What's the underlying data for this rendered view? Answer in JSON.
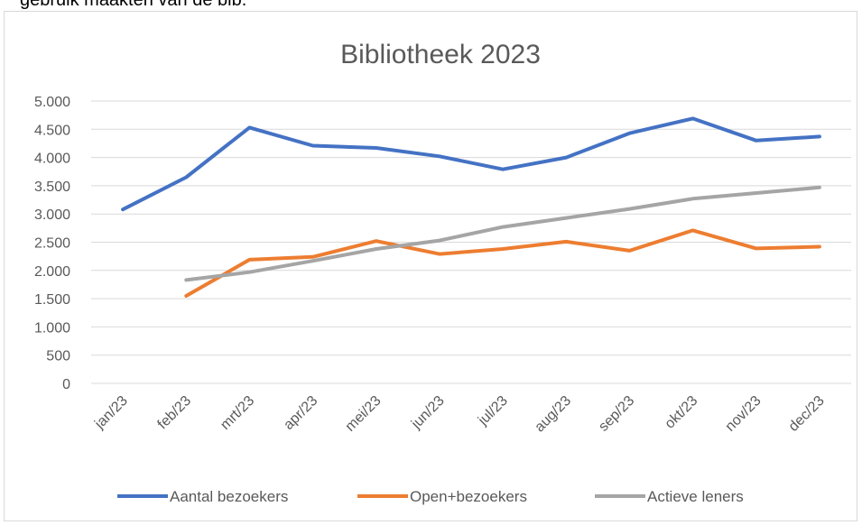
{
  "page": {
    "caption": "gebruik maakten van de bib."
  },
  "chart_data": {
    "type": "line",
    "title": "Bibliotheek 2023",
    "categories": [
      "jan/23",
      "feb/23",
      "mrt/23",
      "apr/23",
      "mei/23",
      "jun/23",
      "jul/23",
      "aug/23",
      "sep/23",
      "okt/23",
      "nov/23",
      "dec/23"
    ],
    "ylim": [
      0,
      5000
    ],
    "yticks": [
      0,
      500,
      1000,
      1500,
      2000,
      2500,
      3000,
      3500,
      4000,
      4500,
      5000
    ],
    "ytick_labels": [
      "0",
      "500",
      "1.000",
      "1.500",
      "2.000",
      "2.500",
      "3.000",
      "3.500",
      "4.000",
      "4.500",
      "5.000"
    ],
    "grid": true,
    "legend_position": "bottom",
    "series": [
      {
        "name": "Aantal bezoekers",
        "color": "#4472c4",
        "values": [
          3080,
          3650,
          4530,
          4210,
          4170,
          4020,
          3790,
          4000,
          4430,
          4690,
          4300,
          4370
        ]
      },
      {
        "name": "Open+bezoekers",
        "color": "#ed7d31",
        "values": [
          null,
          1550,
          2190,
          2240,
          2520,
          2290,
          2380,
          2510,
          2350,
          2710,
          2390,
          2420
        ]
      },
      {
        "name": "Actieve leners",
        "color": "#a5a5a5",
        "values": [
          null,
          1830,
          1970,
          2170,
          2380,
          2530,
          2770,
          2930,
          3090,
          3270,
          3370,
          3470
        ]
      }
    ]
  }
}
